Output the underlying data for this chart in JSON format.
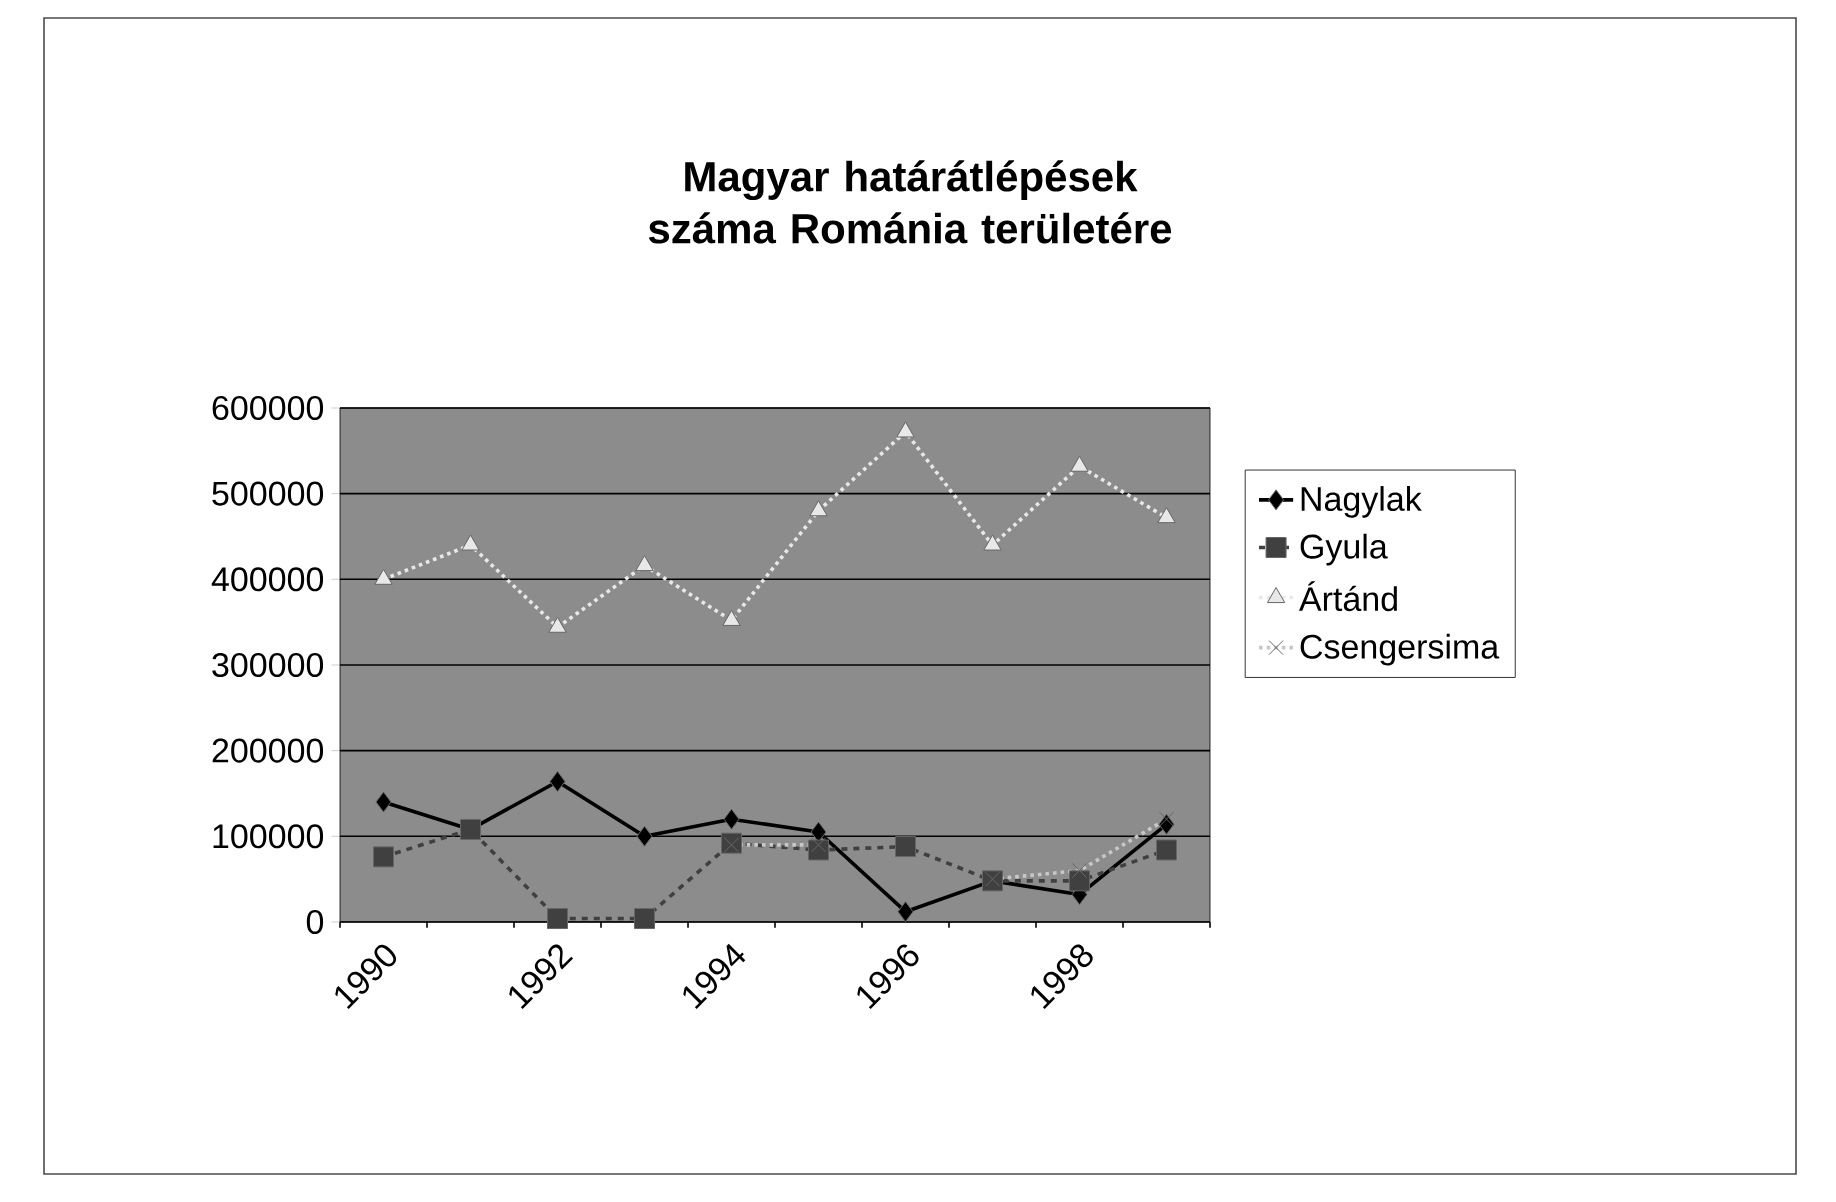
{
  "chart_data": {
    "type": "line",
    "title": "Magyar határátlépések száma Románia területére",
    "categories": [
      "1990",
      null,
      "1992",
      null,
      "1994",
      null,
      "1996",
      null,
      "1998",
      null
    ],
    "series": [
      {
        "name": "Nagylak",
        "color": "#000000",
        "marker": "diamond",
        "line_style": "solid",
        "values": [
          140000,
          108000,
          164000,
          100000,
          120000,
          105000,
          12000,
          48000,
          32000,
          114000
        ]
      },
      {
        "name": "Gyula",
        "color": "#404040",
        "marker": "square",
        "line_style": "dashed",
        "values": [
          76000,
          108000,
          4000,
          4000,
          92000,
          84000,
          88000,
          48000,
          48000,
          84000
        ]
      },
      {
        "name": "Ártánd",
        "color": "#e8e8e8",
        "marker": "triangle",
        "line_style": "dotted",
        "values": [
          400000,
          440000,
          344000,
          416000,
          352000,
          480000,
          572000,
          440000,
          532000,
          472000
        ]
      },
      {
        "name": "Csengersima",
        "color": "#c8c8c8",
        "marker": "cross",
        "line_style": "dotted",
        "values": [
          null,
          null,
          null,
          null,
          90000,
          90000,
          null,
          50000,
          60000,
          120000
        ]
      }
    ],
    "ylim": [
      0,
      600000
    ],
    "yticks": [
      0,
      100000,
      200000,
      300000,
      400000,
      500000,
      600000
    ],
    "grid": "y",
    "legend": "right"
  }
}
